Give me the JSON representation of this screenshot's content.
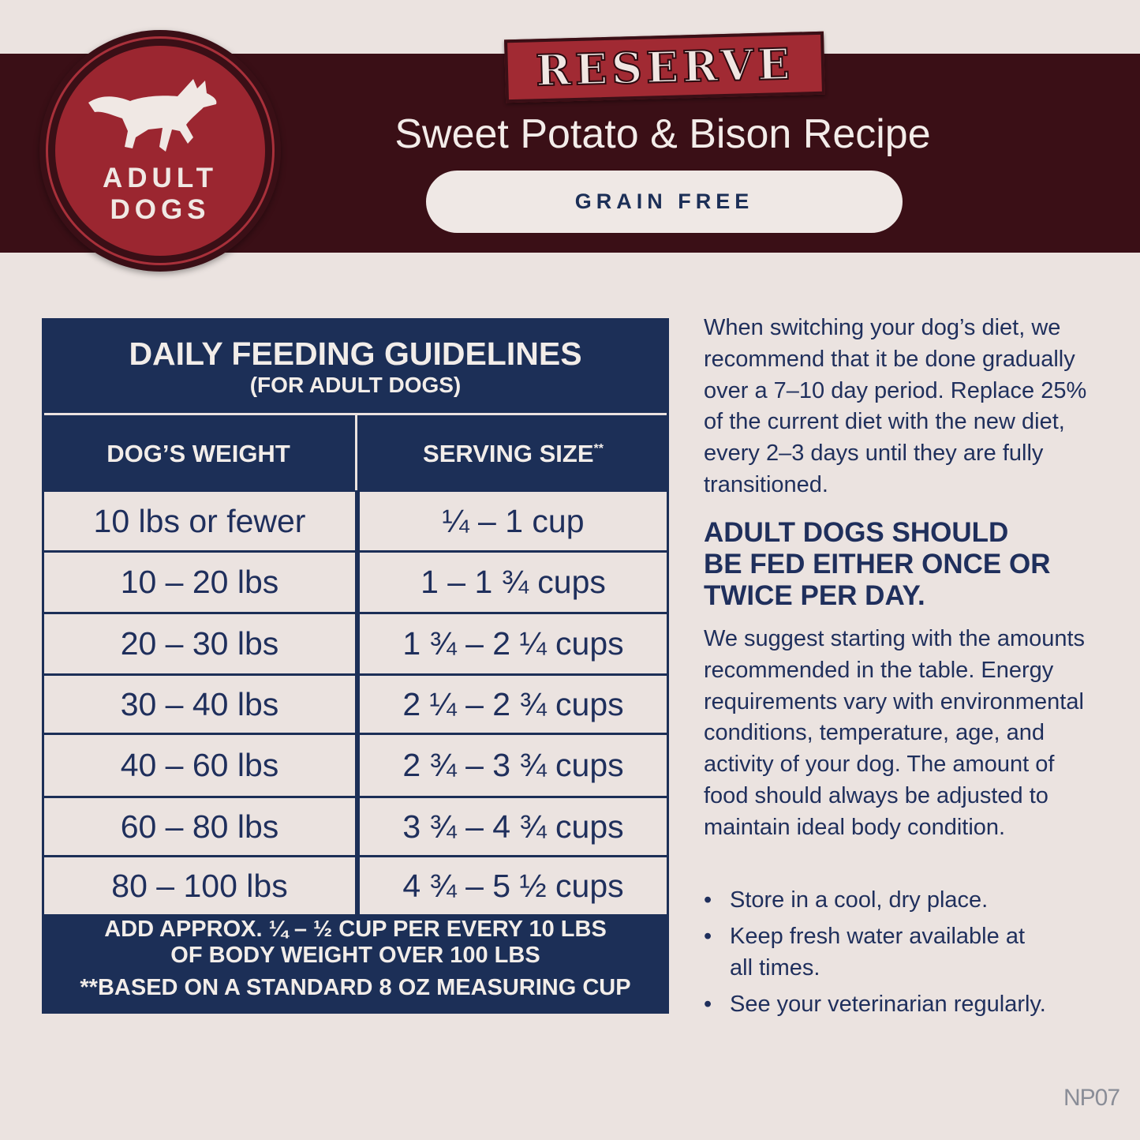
{
  "badge": {
    "line1": "ADULT",
    "line2": "DOGS",
    "icon": "running-dog-icon"
  },
  "brand": {
    "reserve": "RESERVE",
    "title": "Sweet Potato & Bison Recipe",
    "tag": "GRAIN FREE"
  },
  "table": {
    "title": "DAILY FEEDING GUIDELINES",
    "subtitle": "(FOR ADULT DOGS)",
    "headers": [
      "DOG’S WEIGHT",
      "SERVING SIZE"
    ],
    "header_mark": "**",
    "rows": [
      {
        "weight": "10 lbs or fewer",
        "serving": "¼ – 1 cup"
      },
      {
        "weight": "10 – 20 lbs",
        "serving": "1 – 1 ¾ cups"
      },
      {
        "weight": "20 – 30 lbs",
        "serving": "1 ¾ –  2 ¼ cups"
      },
      {
        "weight": "30 – 40 lbs",
        "serving": "2 ¼ – 2 ¾ cups"
      },
      {
        "weight": "40 – 60 lbs",
        "serving": "2 ¾ – 3 ¾ cups"
      },
      {
        "weight": "60 – 80 lbs",
        "serving": "3 ¾ – 4 ¾ cups"
      },
      {
        "weight": "80 – 100 lbs",
        "serving": "4 ¾ – 5 ½ cups"
      }
    ],
    "footer1": "ADD APPROX. ¼ – ½ CUP PER EVERY 10 LBS",
    "footer2": "OF BODY WEIGHT OVER 100 LBS",
    "footer3": "**BASED ON A STANDARD 8 OZ MEASURING CUP"
  },
  "side": {
    "intro": "When switching your dog’s diet, we recommend that it be done gradually over a 7–10 day period. Replace 25% of the current diet with the new diet, every 2–3 days until they are fully transitioned.",
    "heading": "ADULT DOGS SHOULD BE FED EITHER ONCE OR TWICE PER DAY.",
    "body": "We suggest starting with the amounts recommended in the table. Energy requirements vary with environmental conditions, temperature, age, and activity of your dog. The amount of food should always be adjusted to maintain ideal body condition.",
    "bullets": [
      "Store in a cool, dry place.",
      "Keep fresh water available at all times.",
      "See your veterinarian regularly."
    ]
  },
  "code": "NP07",
  "colors": {
    "maroon": "#3a0f16",
    "red": "#9b2630",
    "navy": "#1c2f57",
    "background": "#ebe3e0"
  }
}
